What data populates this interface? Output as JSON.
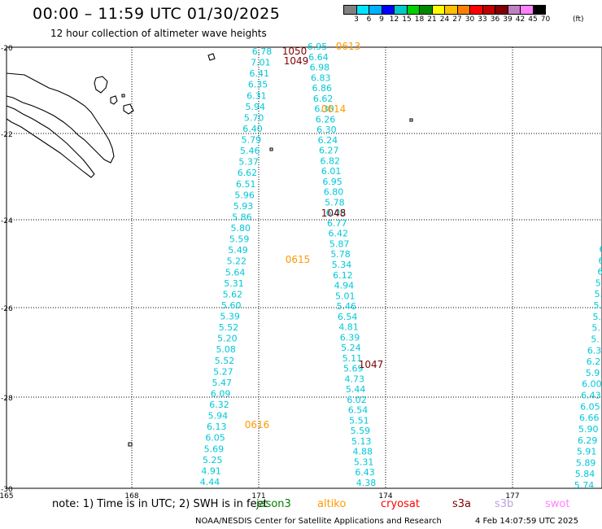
{
  "title": "00:00 – 11:59 UTC 01/30/2025",
  "subtitle": "12 hour collection of altimeter wave heights",
  "color_scale": {
    "labels": [
      "3",
      "6",
      "9",
      "12",
      "15",
      "18",
      "21",
      "24",
      "27",
      "30",
      "33",
      "36",
      "39",
      "42",
      "45",
      "70"
    ],
    "unit": "(ft)",
    "colors": [
      "#808080",
      "#00e5ff",
      "#00b0ff",
      "#0000ff",
      "#00c8c8",
      "#00d000",
      "#008800",
      "#ffff00",
      "#ffc000",
      "#ff8000",
      "#ff0000",
      "#c00000",
      "#800000",
      "#c080c0",
      "#ff80ff",
      "#000000"
    ]
  },
  "axes": {
    "lat_labels": [
      "-20",
      "-22",
      "-24",
      "-26",
      "-28",
      "-30"
    ],
    "lon_labels": [
      "165",
      "168",
      "171",
      "174",
      "177"
    ]
  },
  "tracks": [
    {
      "color": "#00c8d8",
      "values": [
        "6.78",
        "7.01",
        "6.41",
        "6.35",
        "6.31",
        "5.94",
        "5.70",
        "6.40",
        "5.79",
        "5.46",
        "5.37",
        "6.62",
        "6.51",
        "5.96",
        "5.93",
        "5.86",
        "5.80",
        "5.59",
        "5.49",
        "5.22",
        "5.64",
        "5.31",
        "5.62",
        "5.60",
        "5.39",
        "5.52",
        "5.20",
        "5.08",
        "5.52",
        "5.27",
        "5.47",
        "6.09",
        "6.32",
        "5.94",
        "6.13",
        "6.05",
        "5.69",
        "5.25",
        "4.91",
        "4.44"
      ]
    },
    {
      "color": "#00c8d8",
      "values": [
        "6.95",
        "6.64",
        "6.98",
        "6.83",
        "6.86",
        "6.62",
        "6.30",
        "6.26",
        "6.30",
        "6.24",
        "6.27",
        "6.82",
        "6.01",
        "6.95",
        "6.80",
        "5.78",
        "6.05",
        "6.77",
        "6.42",
        "5.87",
        "5.78",
        "5.34",
        "6.12",
        "4.94",
        "5.01",
        "5.46",
        "6.54",
        "4.81",
        "6.39",
        "5.24",
        "5.11",
        "5.69",
        "4.73",
        "5.44",
        "6.02",
        "6.54",
        "5.51",
        "5.59",
        "5.13",
        "4.88",
        "5.31",
        "6.43",
        "4.38"
      ]
    },
    {
      "color": "#00c8d8",
      "values": [
        "6",
        "6",
        "6",
        "5.",
        "5.",
        "5.",
        "5.",
        "5.",
        "5.",
        "6.3",
        "6.2",
        "5.9",
        "6.00",
        "6.43",
        "6.05",
        "6.66",
        "5.90",
        "6.29",
        "5.91",
        "5.89",
        "5.84",
        "5.74"
      ]
    }
  ],
  "pass_labels": [
    {
      "text": "1050",
      "color": "#800000"
    },
    {
      "text": "0613",
      "color": "#ff9900"
    },
    {
      "text": "1049",
      "color": "#800000"
    },
    {
      "text": "0614",
      "color": "#ff9900"
    },
    {
      "text": "1048",
      "color": "#800000"
    },
    {
      "text": "0615",
      "color": "#ff9900"
    },
    {
      "text": "1047",
      "color": "#800000"
    },
    {
      "text": "0616",
      "color": "#ff9900"
    }
  ],
  "note": "note: 1) Time is in UTC; 2) SWH is in feet",
  "satellites": [
    {
      "name": "jason3",
      "color": "#008000"
    },
    {
      "name": "altiko",
      "color": "#ff9900"
    },
    {
      "name": "cryosat",
      "color": "#ff0000"
    },
    {
      "name": "s3a",
      "color": "#800000"
    },
    {
      "name": "s3b",
      "color": "#c0a0e0"
    },
    {
      "name": "swot",
      "color": "#ff80ff"
    }
  ],
  "footer": "NOAA/NESDIS Center for Satellite Applications and Research",
  "footer_time": "4 Feb 14:07:59 UTC 2025"
}
